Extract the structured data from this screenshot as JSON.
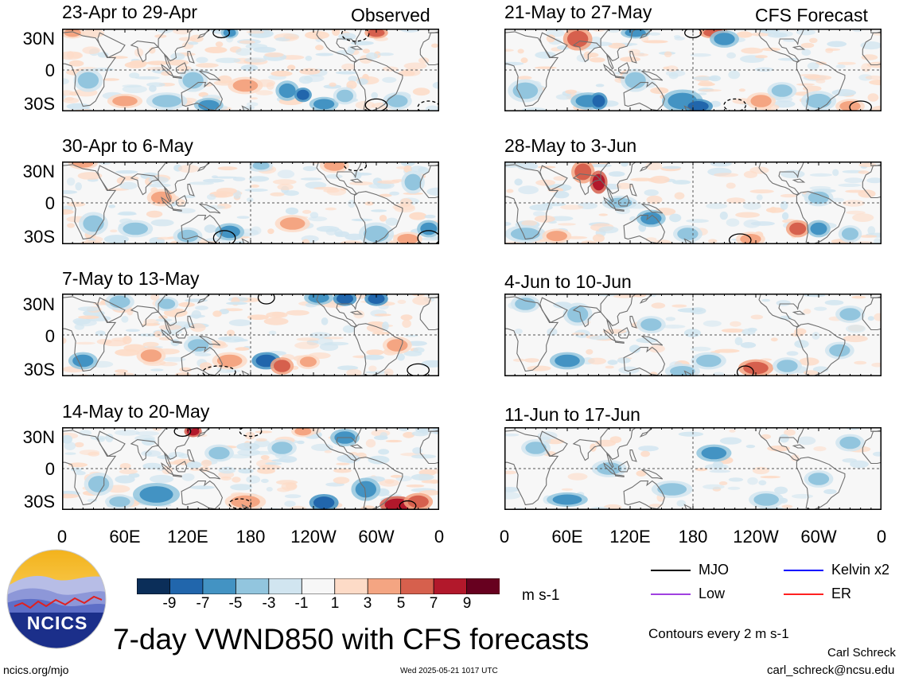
{
  "header": {
    "observed_label": "Observed",
    "forecast_label": "CFS Forecast"
  },
  "panels": {
    "observed": [
      "23-Apr to 29-Apr",
      "30-Apr to 6-May",
      "7-May to 13-May",
      "14-May to 20-May"
    ],
    "forecast": [
      "21-May to 27-May",
      "28-May to 3-Jun",
      "4-Jun to 10-Jun",
      "11-Jun to 17-Jun"
    ]
  },
  "axes": {
    "lat_ticks": [
      "30N",
      "0",
      "30S"
    ],
    "lon_ticks": [
      "0",
      "60E",
      "120E",
      "180",
      "120W",
      "60W",
      "0"
    ]
  },
  "colorbar": {
    "ticks": [
      "-9",
      "-7",
      "-5",
      "-3",
      "-1",
      "1",
      "3",
      "5",
      "7",
      "9"
    ],
    "colors": [
      "#0b2e59",
      "#2166ac",
      "#4393c3",
      "#92c5de",
      "#d1e5f0",
      "#f7f7f7",
      "#fddbc7",
      "#f4a582",
      "#d6604d",
      "#b2182b",
      "#67001f"
    ],
    "units": "m s-1"
  },
  "legend": {
    "items": [
      {
        "label": "MJO",
        "color": "#000000"
      },
      {
        "label": "Kelvin x2",
        "color": "#0000ff"
      },
      {
        "label": "Low",
        "color": "#a040e0"
      },
      {
        "label": "ER",
        "color": "#ff2020"
      }
    ],
    "contour_note": "Contours every 2 m s-1"
  },
  "footer": {
    "logo_text": "NCICS",
    "main_title": "7-day VWND850 with CFS forecasts",
    "url": "ncics.org/mjo",
    "timestamp": "Wed 2025-05-21 1017 UTC",
    "author": "Carl Schreck",
    "email": "carl_schreck@ncsu.edu"
  },
  "chart_data": {
    "type": "heatmap",
    "variable": "VWND850",
    "units": "m s-1",
    "colorbar_levels": [
      -9,
      -7,
      -5,
      -3,
      -1,
      1,
      3,
      5,
      7,
      9
    ],
    "x_ticks": [
      "0",
      "60E",
      "120E",
      "180",
      "120W",
      "60W",
      "0"
    ],
    "y_ticks": [
      "30N",
      "0",
      "30S"
    ],
    "observed_periods": [
      "23-Apr to 29-Apr",
      "30-Apr to 6-May",
      "7-May to 13-May",
      "14-May to 20-May"
    ],
    "forecast_periods": [
      "21-May to 27-May",
      "28-May to 3-Jun",
      "4-Jun to 10-Jun",
      "11-Jun to 17-Jun"
    ]
  }
}
